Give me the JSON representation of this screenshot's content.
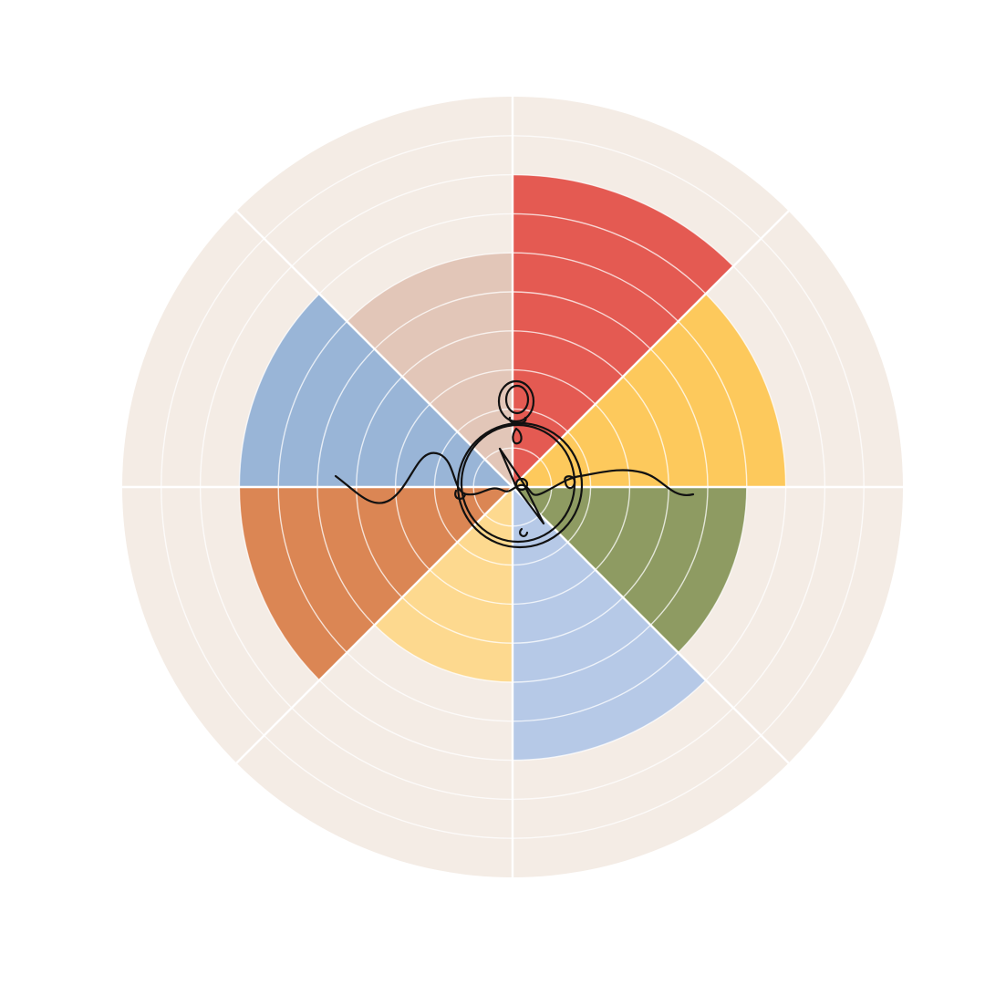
{
  "chart_data": {
    "type": "polar-area",
    "scale_max": 10,
    "ring_count": 10,
    "grid": true,
    "legend": "none",
    "start_angle_deg": 0,
    "direction": "clockwise",
    "segments": [
      {
        "value": 8,
        "color": "#e45a52"
      },
      {
        "value": 7,
        "color": "#fdc95c"
      },
      {
        "value": 6,
        "color": "#8e9b62"
      },
      {
        "value": 7,
        "color": "#b6c9e7"
      },
      {
        "value": 5,
        "color": "#fdd98f"
      },
      {
        "value": 7,
        "color": "#db8654"
      },
      {
        "value": 7,
        "color": "#99b5d7"
      },
      {
        "value": 6,
        "color": "#e2c6b8"
      }
    ],
    "background_color": "#f4ece5",
    "grid_color": "#ffffff"
  },
  "center_emblem": {
    "icon": "compass-line-drawing-icon",
    "stroke_color": "#111111"
  }
}
